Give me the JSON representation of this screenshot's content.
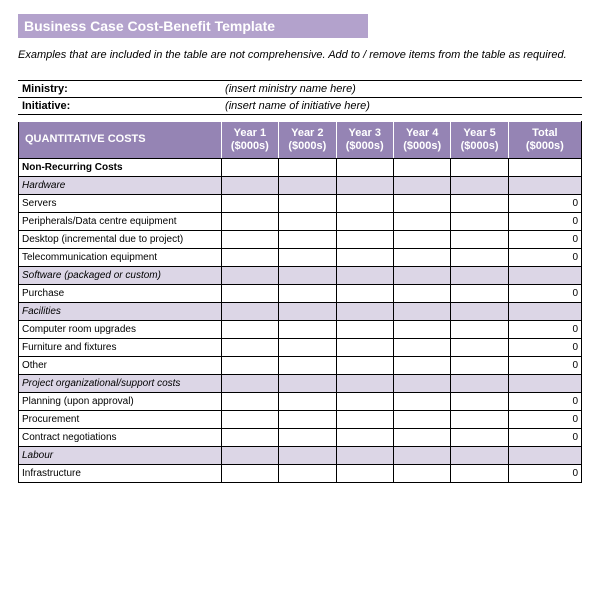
{
  "title": "Business Case Cost-Benefit Template",
  "subtitle": "Examples that are included in the table are not comprehensive.  Add to / remove items from the table as required.",
  "meta": {
    "ministry_label": "Ministry:",
    "ministry_value": "(insert ministry name here)",
    "initiative_label": "Initiative:",
    "initiative_value": "(insert name of initiative here)"
  },
  "header": {
    "costs_label": "QUANTITATIVE COSTS",
    "y1a": "Year 1",
    "y1b": "($000s)",
    "y2a": "Year 2",
    "y2b": "($000s)",
    "y3a": "Year 3",
    "y3b": "($000s)",
    "y4a": "Year 4",
    "y4b": "($000s)",
    "y5a": "Year 5",
    "y5b": "($000s)",
    "tota": "Total",
    "totb": "($000s)"
  },
  "rows": {
    "r0": {
      "label": "Non-Recurring Costs"
    },
    "r1": {
      "label": "Hardware"
    },
    "r2": {
      "label": "Servers",
      "total": "0"
    },
    "r3": {
      "label": "Peripherals/Data centre equipment",
      "total": "0"
    },
    "r4": {
      "label": "Desktop (incremental due to project)",
      "total": "0"
    },
    "r5": {
      "label": "Telecommunication equipment",
      "total": "0"
    },
    "r6": {
      "label": "Software (packaged or custom)"
    },
    "r7": {
      "label": "Purchase",
      "total": "0"
    },
    "r8": {
      "label": "Facilities"
    },
    "r9": {
      "label": "Computer room upgrades",
      "total": "0"
    },
    "r10": {
      "label": "Furniture and fixtures",
      "total": "0"
    },
    "r11": {
      "label": "Other",
      "total": "0"
    },
    "r12": {
      "label": "Project organizational/support costs"
    },
    "r13": {
      "label": "Planning (upon approval)",
      "total": "0"
    },
    "r14": {
      "label": "Procurement",
      "total": "0"
    },
    "r15": {
      "label": "Contract negotiations",
      "total": "0"
    },
    "r16": {
      "label": "Labour"
    },
    "r17": {
      "label": "Infrastructure",
      "total": "0"
    }
  },
  "style": {
    "accent_light": "#b3a2cc",
    "accent_dark": "#9584b4",
    "shade": "#dcd6e6",
    "white": "#ffffff",
    "black": "#000000"
  }
}
